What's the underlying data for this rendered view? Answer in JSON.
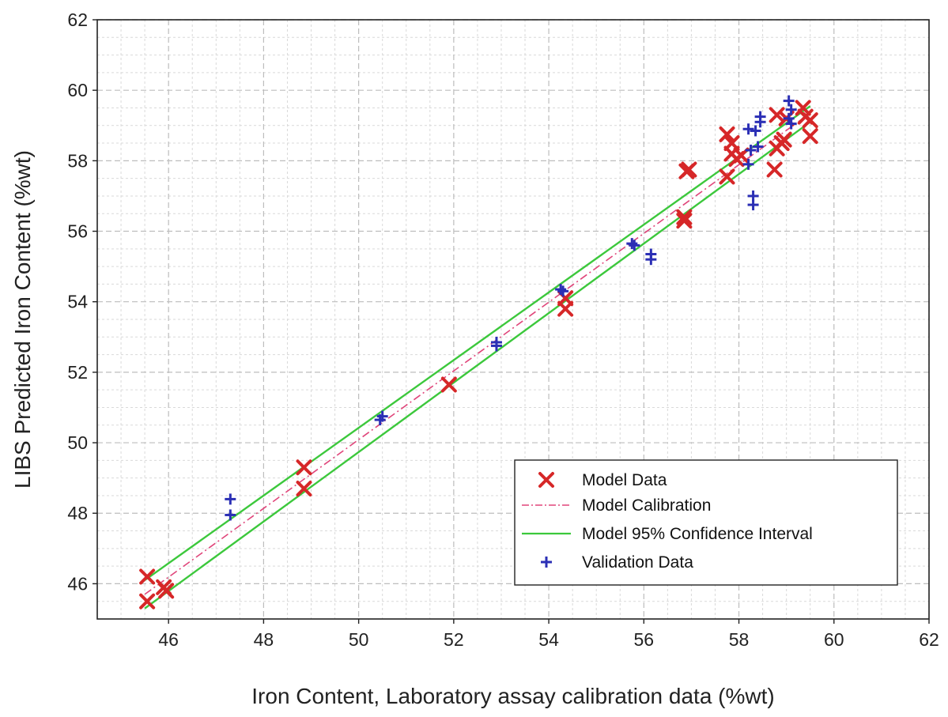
{
  "chart_data": {
    "type": "scatter",
    "xlabel": "Iron Content, Laboratory assay calibration data (%wt)",
    "ylabel": "LIBS Predicted Iron Content (%wt)",
    "xlim": [
      44.5,
      62
    ],
    "ylim": [
      45,
      62
    ],
    "xticks": [
      "46",
      "48",
      "50",
      "52",
      "54",
      "56",
      "58",
      "60",
      "62"
    ],
    "yticks": [
      "46",
      "48",
      "50",
      "52",
      "54",
      "56",
      "58",
      "60",
      "62"
    ],
    "grid": true,
    "legend_position": "bottom-right",
    "colors": {
      "model_data": "#d62728",
      "calibration": "#e0457a",
      "confidence": "#3cc83c",
      "validation": "#2b2fb5"
    },
    "series": [
      {
        "name": "Model Data",
        "marker": "x",
        "points": [
          [
            45.55,
            46.2
          ],
          [
            45.55,
            45.5
          ],
          [
            45.9,
            45.9
          ],
          [
            45.95,
            45.8
          ],
          [
            48.85,
            49.3
          ],
          [
            48.85,
            48.7
          ],
          [
            51.9,
            51.65
          ],
          [
            54.35,
            54.1
          ],
          [
            54.35,
            53.8
          ],
          [
            56.85,
            56.4
          ],
          [
            56.85,
            56.3
          ],
          [
            56.95,
            57.75
          ],
          [
            56.9,
            57.7
          ],
          [
            57.75,
            58.75
          ],
          [
            57.75,
            57.55
          ],
          [
            57.85,
            58.5
          ],
          [
            57.85,
            58.2
          ],
          [
            57.95,
            58.05
          ],
          [
            58.05,
            58.15
          ],
          [
            58.75,
            57.75
          ],
          [
            58.8,
            58.35
          ],
          [
            58.8,
            59.3
          ],
          [
            58.9,
            58.5
          ],
          [
            58.95,
            58.6
          ],
          [
            59.0,
            59.2
          ],
          [
            59.35,
            59.5
          ],
          [
            59.4,
            59.25
          ],
          [
            59.5,
            59.15
          ],
          [
            59.5,
            58.7
          ]
        ]
      },
      {
        "name": "Model Calibration",
        "line": [
          [
            45.5,
            45.7
          ],
          [
            59.5,
            59.35
          ]
        ]
      },
      {
        "name": "Model 95% Confidence Interval",
        "upper": [
          [
            45.5,
            46.1
          ],
          [
            59.5,
            59.55
          ]
        ],
        "lower": [
          [
            45.5,
            45.3
          ],
          [
            59.5,
            59.1
          ]
        ]
      },
      {
        "name": "Validation Data",
        "marker": "+",
        "points": [
          [
            47.3,
            48.4
          ],
          [
            47.3,
            47.95
          ],
          [
            50.45,
            50.65
          ],
          [
            50.5,
            50.75
          ],
          [
            52.9,
            52.85
          ],
          [
            52.9,
            52.75
          ],
          [
            54.25,
            54.35
          ],
          [
            54.3,
            54.3
          ],
          [
            55.75,
            55.65
          ],
          [
            55.8,
            55.6
          ],
          [
            56.15,
            55.35
          ],
          [
            56.15,
            55.2
          ],
          [
            58.2,
            58.9
          ],
          [
            58.2,
            57.9
          ],
          [
            58.25,
            58.3
          ],
          [
            58.3,
            57.0
          ],
          [
            58.3,
            56.75
          ],
          [
            58.35,
            58.85
          ],
          [
            58.4,
            58.4
          ],
          [
            58.45,
            59.25
          ],
          [
            58.45,
            59.1
          ],
          [
            59.05,
            59.7
          ],
          [
            59.05,
            59.2
          ],
          [
            59.1,
            59.45
          ],
          [
            59.1,
            59.05
          ]
        ]
      }
    ]
  }
}
